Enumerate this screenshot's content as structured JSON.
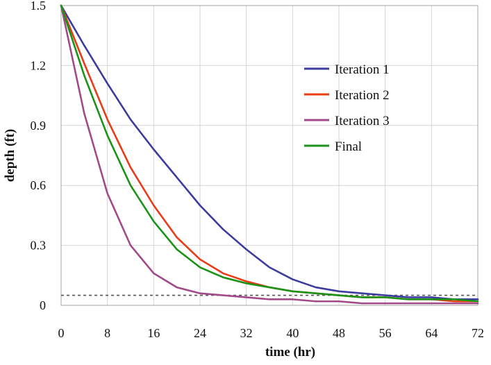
{
  "chart_data": {
    "type": "line",
    "title": "",
    "xlabel": "time (hr)",
    "ylabel": "depth (ft)",
    "xlim": [
      0,
      72
    ],
    "ylim": [
      0,
      1.5
    ],
    "x_ticks": [
      0,
      8,
      16,
      24,
      32,
      40,
      48,
      56,
      64,
      72
    ],
    "y_ticks": [
      "0",
      "0.3",
      "0.6",
      "0.9",
      "1.2",
      "1.5"
    ],
    "grid": true,
    "legend_position": "top-right",
    "x": [
      0,
      4,
      8,
      12,
      16,
      20,
      24,
      28,
      32,
      36,
      40,
      44,
      48,
      52,
      56,
      60,
      64,
      68,
      72
    ],
    "series": [
      {
        "name": "Iteration 1",
        "color": "#3c3c9e",
        "values": [
          1.5,
          1.3,
          1.11,
          0.93,
          0.78,
          0.64,
          0.5,
          0.38,
          0.28,
          0.19,
          0.13,
          0.09,
          0.07,
          0.06,
          0.05,
          0.04,
          0.04,
          0.03,
          0.03
        ]
      },
      {
        "name": "Iteration 2",
        "color": "#ea3b17",
        "values": [
          1.5,
          1.21,
          0.93,
          0.69,
          0.5,
          0.34,
          0.23,
          0.16,
          0.12,
          0.09,
          0.07,
          0.06,
          0.05,
          0.04,
          0.04,
          0.03,
          0.03,
          0.02,
          0.02
        ]
      },
      {
        "name": "Iteration 3",
        "color": "#a24a88",
        "values": [
          1.5,
          0.96,
          0.56,
          0.3,
          0.16,
          0.09,
          0.06,
          0.05,
          0.04,
          0.03,
          0.03,
          0.02,
          0.02,
          0.01,
          0.01,
          0.01,
          0.01,
          0.01,
          0.01
        ]
      },
      {
        "name": "Final",
        "color": "#1a9318",
        "values": [
          1.5,
          1.15,
          0.85,
          0.6,
          0.42,
          0.28,
          0.19,
          0.14,
          0.11,
          0.09,
          0.07,
          0.06,
          0.05,
          0.04,
          0.04,
          0.03,
          0.03,
          0.03,
          0.02
        ]
      }
    ],
    "reference_line": {
      "y": 0.05,
      "style": "dashed",
      "color": "#555555"
    }
  }
}
